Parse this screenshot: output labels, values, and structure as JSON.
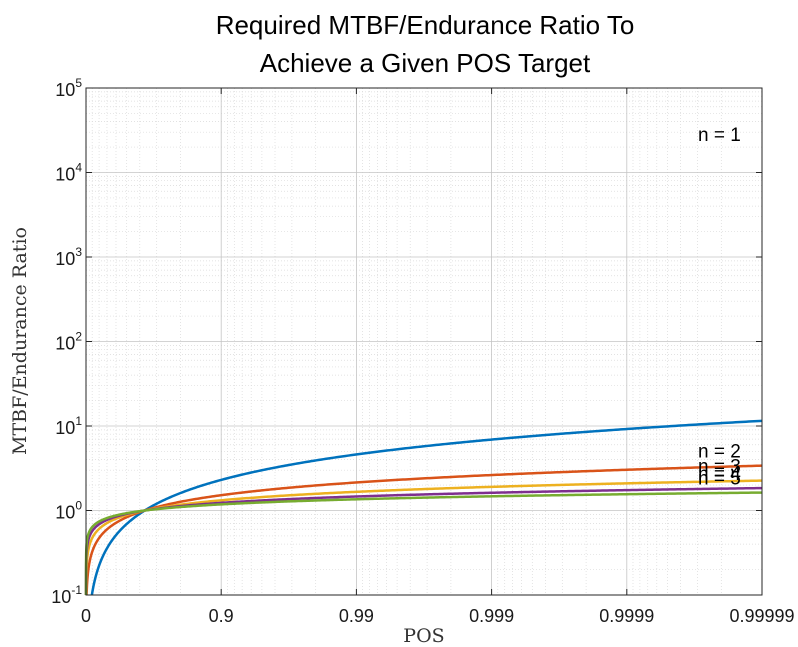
{
  "chart_data": {
    "type": "line",
    "title": [
      "Required MTBF/Endurance Ratio To",
      "Achieve a Given POS Target"
    ],
    "xlabel": "POS",
    "ylabel": "MTBF/Endurance Ratio",
    "x_scale": "-log10(1-x)",
    "y_scale": "log",
    "xlim": [
      0,
      0.99999
    ],
    "ylim": [
      0.1,
      100000
    ],
    "x_ticks": [
      {
        "value": 0,
        "label": "0"
      },
      {
        "value": 0.9,
        "label": "0.9"
      },
      {
        "value": 0.99,
        "label": "0.99"
      },
      {
        "value": 0.999,
        "label": "0.999"
      },
      {
        "value": 0.9999,
        "label": "0.9999"
      },
      {
        "value": 0.99999,
        "label": "0.99999"
      }
    ],
    "y_ticks": [
      {
        "value": 0.1,
        "base": "10",
        "exp": "-1"
      },
      {
        "value": 1,
        "base": "10",
        "exp": "0"
      },
      {
        "value": 10,
        "base": "10",
        "exp": "1"
      },
      {
        "value": 100,
        "base": "10",
        "exp": "2"
      },
      {
        "value": 1000,
        "base": "10",
        "exp": "3"
      },
      {
        "value": 10000,
        "base": "10",
        "exp": "4"
      },
      {
        "value": 100000,
        "base": "10",
        "exp": "5"
      }
    ],
    "grid": true,
    "series": [
      {
        "name": "n = 1",
        "color": "#0072BD",
        "x": [
          0.5,
          0.8,
          0.9,
          0.95,
          0.99,
          0.995,
          0.999,
          0.9999,
          0.99999
        ],
        "y": [
          0.69,
          1.61,
          2.3,
          3.0,
          4.6,
          5.3,
          6.9,
          9.2,
          11.5
        ]
      },
      {
        "name": "n = 2",
        "color": "#D95319",
        "x": [
          0.5,
          0.8,
          0.9,
          0.95,
          0.99,
          0.995,
          0.999,
          0.9999,
          0.99999
        ],
        "y": [
          0.59,
          1.08,
          1.4,
          1.8,
          2.6,
          3.0,
          3.8,
          5.1,
          6.3
        ]
      },
      {
        "name": "n = 3",
        "color": "#EDB120",
        "x": [
          0.5,
          0.8,
          0.9,
          0.95,
          0.99,
          0.995,
          0.999,
          0.9999,
          0.99999
        ],
        "y": [
          0.51,
          0.85,
          1.06,
          1.3,
          1.76,
          2.0,
          2.5,
          3.3,
          4.0
        ]
      },
      {
        "name": "n = 4",
        "color": "#7E2F8E",
        "x": [
          0.5,
          0.8,
          0.9,
          0.95,
          0.99,
          0.995,
          0.999,
          0.9999,
          0.99999
        ],
        "y": [
          0.45,
          0.73,
          0.89,
          1.1,
          1.39,
          1.55,
          1.9,
          2.5,
          2.9
        ]
      },
      {
        "name": "n = 5",
        "color": "#77AC30",
        "x": [
          0.5,
          0.8,
          0.9,
          0.95,
          0.99,
          0.995,
          0.999,
          0.9999,
          0.99999
        ],
        "y": [
          0.42,
          0.65,
          0.78,
          0.92,
          1.16,
          1.3,
          1.6,
          2.0,
          2.4
        ]
      }
    ]
  }
}
